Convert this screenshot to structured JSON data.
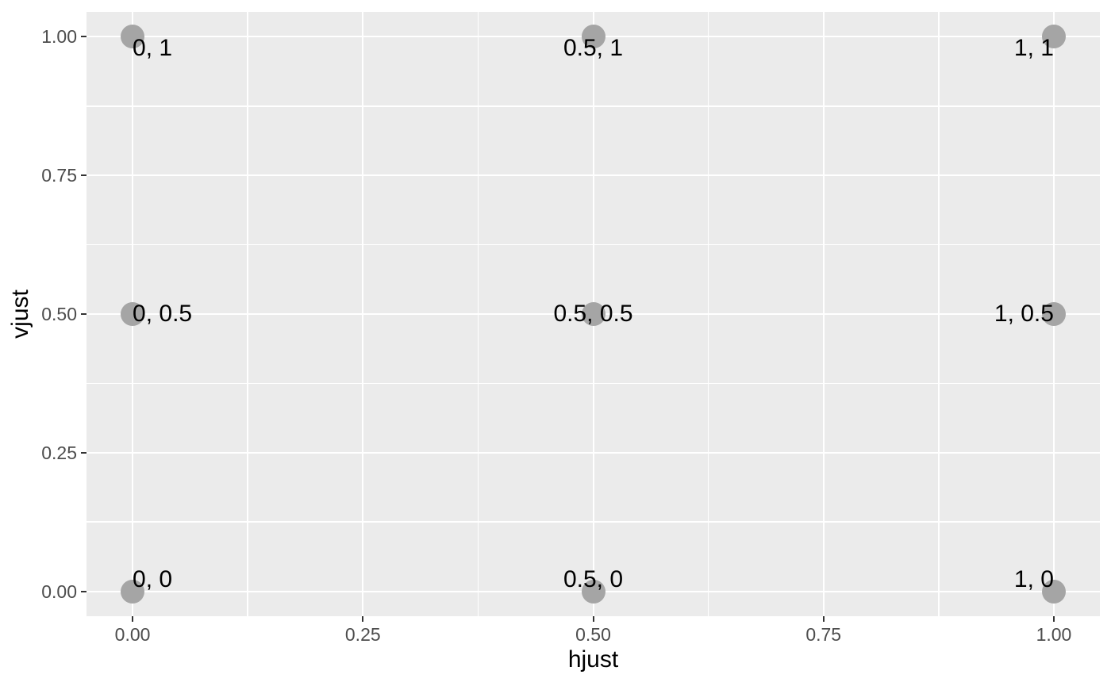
{
  "chart_data": {
    "type": "scatter",
    "title": "",
    "xlabel": "hjust",
    "ylabel": "vjust",
    "xlim": [
      -0.05,
      1.05
    ],
    "ylim": [
      -0.045,
      1.045
    ],
    "grid": "on",
    "legend": "none",
    "x_major_ticks": [
      0,
      0.25,
      0.5,
      0.75,
      1
    ],
    "x_tick_labels": [
      "0.00",
      "0.25",
      "0.50",
      "0.75",
      "1.00"
    ],
    "y_major_ticks": [
      0,
      0.25,
      0.5,
      0.75,
      1
    ],
    "y_tick_labels": [
      "0.00",
      "0.25",
      "0.50",
      "0.75",
      "1.00"
    ],
    "x_minor_ticks": [
      0.125,
      0.375,
      0.625,
      0.875
    ],
    "y_minor_ticks": [
      0.125,
      0.375,
      0.625,
      0.875
    ],
    "points": [
      {
        "x": 0,
        "y": 0,
        "label": "0, 0",
        "hjust": 0,
        "vjust": 0
      },
      {
        "x": 0.5,
        "y": 0,
        "label": "0.5, 0",
        "hjust": 0.5,
        "vjust": 0
      },
      {
        "x": 1,
        "y": 0,
        "label": "1, 0",
        "hjust": 1,
        "vjust": 0
      },
      {
        "x": 0,
        "y": 0.5,
        "label": "0, 0.5",
        "hjust": 0,
        "vjust": 0.5
      },
      {
        "x": 0.5,
        "y": 0.5,
        "label": "0.5, 0.5",
        "hjust": 0.5,
        "vjust": 0.5
      },
      {
        "x": 1,
        "y": 0.5,
        "label": "1, 0.5",
        "hjust": 1,
        "vjust": 0.5
      },
      {
        "x": 0,
        "y": 1,
        "label": "0, 1",
        "hjust": 0,
        "vjust": 1
      },
      {
        "x": 0.5,
        "y": 1,
        "label": "0.5, 1",
        "hjust": 0.5,
        "vjust": 1
      },
      {
        "x": 1,
        "y": 1,
        "label": "1, 1",
        "hjust": 1,
        "vjust": 1
      }
    ],
    "colors": {
      "panel_bg": "#ebebeb",
      "grid": "#ffffff",
      "point": "#a5a5a5",
      "label_text": "#000000",
      "tick_text": "#4d4d4d",
      "tick_mark": "#333333",
      "axis_title": "#000000",
      "background": "#ffffff"
    }
  }
}
